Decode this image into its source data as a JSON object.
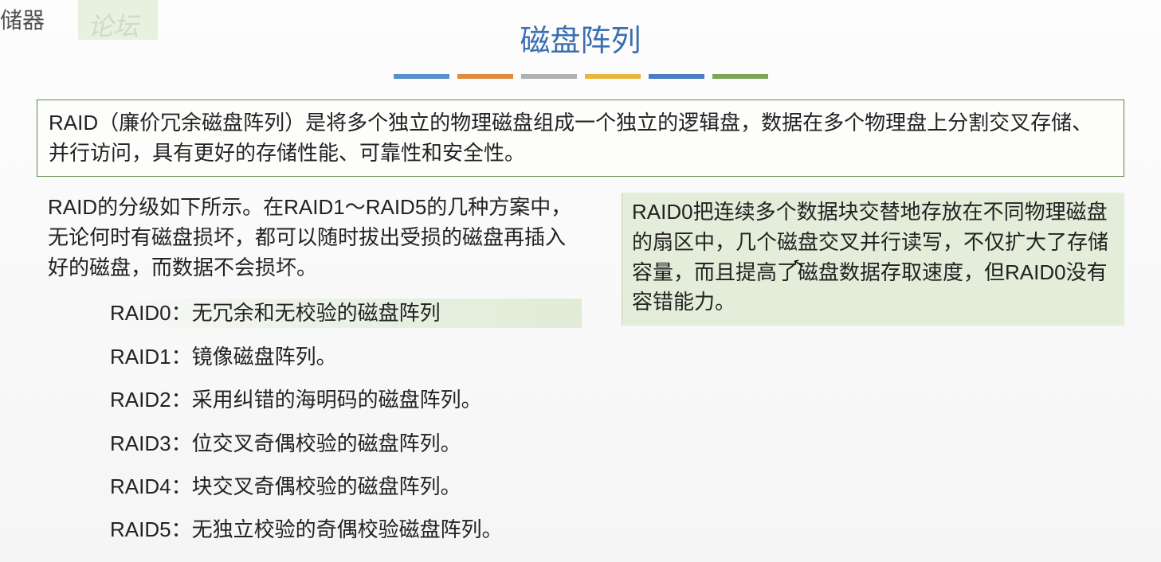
{
  "watermark_corner": "储器",
  "watermark_faint": "论坛",
  "title": "磁盘阵列",
  "divider_colors": [
    "#5a8fce",
    "#e38b3d",
    "#b0b0b0",
    "#e8b63a",
    "#4a7bc4",
    "#7ba657"
  ],
  "intro": "RAID（廉价冗余磁盘阵列）是将多个独立的物理磁盘组成一个独立的逻辑盘，数据在多个物理盘上分割交叉存储、并行访问，具有更好的存储性能、可靠性和安全性。",
  "left_para": "RAID的分级如下所示。在RAID1～RAID5的几种方案中，无论何时有磁盘损坏，都可以随时拔出受损的磁盘再插入好的磁盘，而数据不会损坏。",
  "raid_items": [
    {
      "label": "RAID0：",
      "desc": "无冗余和无校验的磁盘阵列",
      "highlight": true
    },
    {
      "label": "RAID1：",
      "desc": "镜像磁盘阵列。",
      "highlight": false
    },
    {
      "label": "RAID2：",
      "desc": "采用纠错的海明码的磁盘阵列。",
      "highlight": false
    },
    {
      "label": "RAID3：",
      "desc": "位交叉奇偶校验的磁盘阵列。",
      "highlight": false
    },
    {
      "label": "RAID4：",
      "desc": "块交叉奇偶校验的磁盘阵列。",
      "highlight": false
    },
    {
      "label": "RAID5：",
      "desc": "无独立校验的奇偶校验磁盘阵列。",
      "highlight": false
    }
  ],
  "right_box": "RAID0把连续多个数据块交替地存放在不同物理磁盘的扇区中，几个磁盘交叉并行读写，不仅扩大了存储容量，而且提高了磁盘数据存取速度，但RAID0没有容错能力。",
  "colors": {
    "title_color": "#3a6fb0",
    "intro_border": "#5a8a4a",
    "right_bg": "#e3edd9"
  }
}
